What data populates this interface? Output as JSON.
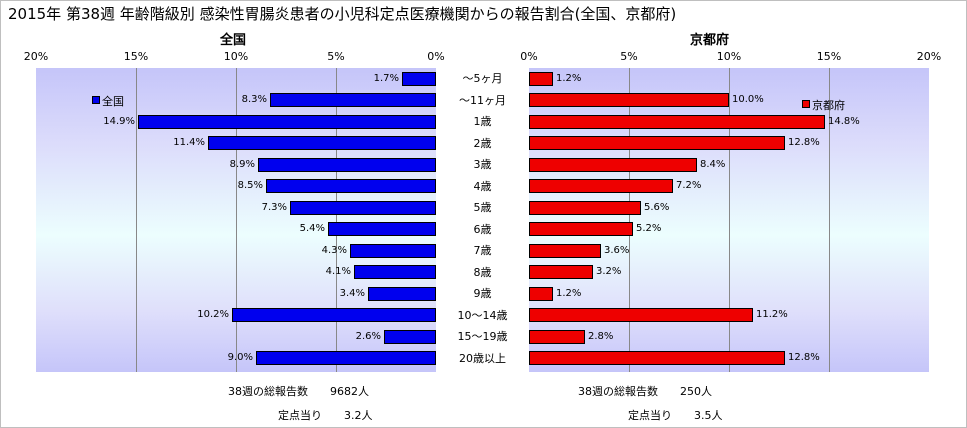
{
  "title": "2015年 第38週 年齢階級別 感染性胃腸炎患者の小児科定点医療機関からの報告割合(全国、京都府)",
  "chart_data": [
    {
      "type": "bar",
      "orientation": "horizontal",
      "direction": "right-to-left",
      "subtitle": "全国",
      "xlim": [
        0,
        20
      ],
      "ticks": [
        "20%",
        "15%",
        "10%",
        "5%",
        "0%"
      ],
      "series": [
        {
          "name": "全国",
          "color": "#0000ee",
          "values": [
            1.7,
            8.3,
            14.9,
            11.4,
            8.9,
            8.5,
            7.3,
            5.4,
            4.3,
            4.1,
            3.4,
            10.2,
            2.6,
            9.0
          ],
          "labels": [
            "1.7%",
            "8.3%",
            "14.9%",
            "11.4%",
            "8.9%",
            "8.5%",
            "7.3%",
            "5.4%",
            "4.3%",
            "4.1%",
            "3.4%",
            "10.2%",
            "2.6%",
            "9.0%"
          ]
        }
      ],
      "legend": "top-left"
    },
    {
      "type": "bar",
      "orientation": "horizontal",
      "direction": "left-to-right",
      "subtitle": "京都府",
      "xlim": [
        0,
        20
      ],
      "ticks": [
        "0%",
        "5%",
        "10%",
        "15%",
        "20%"
      ],
      "series": [
        {
          "name": "京都府",
          "color": "#ee0000",
          "values": [
            1.2,
            10.0,
            14.8,
            12.8,
            8.4,
            7.2,
            5.6,
            5.2,
            3.6,
            3.2,
            1.2,
            11.2,
            2.8,
            12.8
          ],
          "labels": [
            "1.2%",
            "10.0%",
            "14.8%",
            "12.8%",
            "8.4%",
            "7.2%",
            "5.6%",
            "5.2%",
            "3.6%",
            "3.2%",
            "1.2%",
            "11.2%",
            "2.8%",
            "12.8%"
          ]
        }
      ],
      "legend": "top-right"
    }
  ],
  "categories": [
    "～5ヶ月",
    "～11ヶ月",
    "1歳",
    "2歳",
    "3歳",
    "4歳",
    "5歳",
    "6歳",
    "7歳",
    "8歳",
    "9歳",
    "10～14歳",
    "15～19歳",
    "20歳以上"
  ],
  "footer": {
    "national": {
      "reports": "38週の総報告数　　9682人",
      "per_site": "定点当り　　3.2人"
    },
    "kyoto": {
      "reports": "38週の総報告数　　250人",
      "per_site": "定点当り　　3.5人"
    }
  }
}
